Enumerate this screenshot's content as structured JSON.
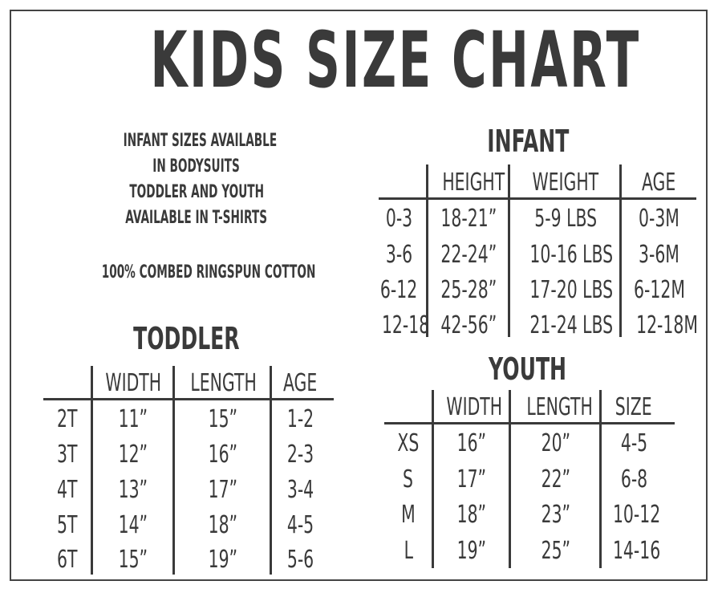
{
  "title": "KIDS SIZE CHART",
  "notes": {
    "lines": [
      "INFANT SIZES AVAILABLE",
      "IN BODYSUITS",
      "TODDLER AND YOUTH",
      "AVAILABLE IN T-SHIRTS"
    ],
    "material": "100% COMBED RINGSPUN COTTON"
  },
  "infant": {
    "title": "INFANT",
    "headers": [
      "HEIGHT",
      "WEIGHT",
      "AGE"
    ],
    "rows": [
      {
        "label": "0-3",
        "values": [
          "18-21”",
          "5-9 LBS",
          "0-3M"
        ]
      },
      {
        "label": "3-6",
        "values": [
          "22-24”",
          "10-16 LBS",
          "3-6M"
        ]
      },
      {
        "label": "6-12",
        "values": [
          "25-28”",
          "17-20 LBS",
          "6-12M"
        ]
      },
      {
        "label": "12-18",
        "values": [
          "42-56”",
          "21-24 LBS",
          "12-18M"
        ]
      }
    ]
  },
  "toddler": {
    "title": "TODDLER",
    "headers": [
      "WIDTH",
      "LENGTH",
      "AGE"
    ],
    "rows": [
      {
        "label": "2T",
        "values": [
          "11”",
          "15”",
          "1-2"
        ]
      },
      {
        "label": "3T",
        "values": [
          "12”",
          "16”",
          "2-3"
        ]
      },
      {
        "label": "4T",
        "values": [
          "13”",
          "17”",
          "3-4"
        ]
      },
      {
        "label": "5T",
        "values": [
          "14”",
          "18”",
          "4-5"
        ]
      },
      {
        "label": "6T",
        "values": [
          "15”",
          "19”",
          "5-6"
        ]
      }
    ]
  },
  "youth": {
    "title": "YOUTH",
    "headers": [
      "WIDTH",
      "LENGTH",
      "SIZE"
    ],
    "rows": [
      {
        "label": "XS",
        "values": [
          "16”",
          "20”",
          "4-5"
        ]
      },
      {
        "label": "S",
        "values": [
          "17”",
          "22”",
          "6-8"
        ]
      },
      {
        "label": "M",
        "values": [
          "18”",
          "23”",
          "10-12"
        ]
      },
      {
        "label": "L",
        "values": [
          "19”",
          "25”",
          "14-16"
        ]
      }
    ]
  }
}
